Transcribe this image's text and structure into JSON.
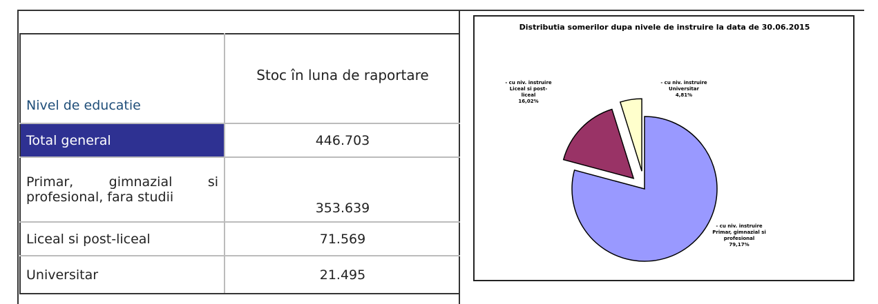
{
  "table": {
    "header": [
      "Nivel de educatie",
      "Stoc în luna de raportare"
    ],
    "rows": [
      [
        "Total general",
        "446.703"
      ],
      [
        "Primar, gimnazial si profesional, fara studii",
        "353.639"
      ],
      [
        "Liceal si post-liceal",
        "71.569"
      ],
      [
        "Universitar",
        "21.495"
      ]
    ]
  },
  "chart_data": {
    "type": "pie",
    "title": "Distributia somerilor dupa nivele de instruire la data de 30.06.2015",
    "categories": [
      "- cu niv. instruire Primar, gimnazial si profesional",
      "- cu niv. instruire Liceal si post-liceal",
      "- cu niv. instruire Universitar"
    ],
    "values": [
      79.17,
      16.02,
      4.81
    ],
    "value_labels": [
      "79,17%",
      "16,02%",
      "4,81%"
    ],
    "colors": [
      "#9999ff",
      "#993366",
      "#ffffcc"
    ]
  }
}
